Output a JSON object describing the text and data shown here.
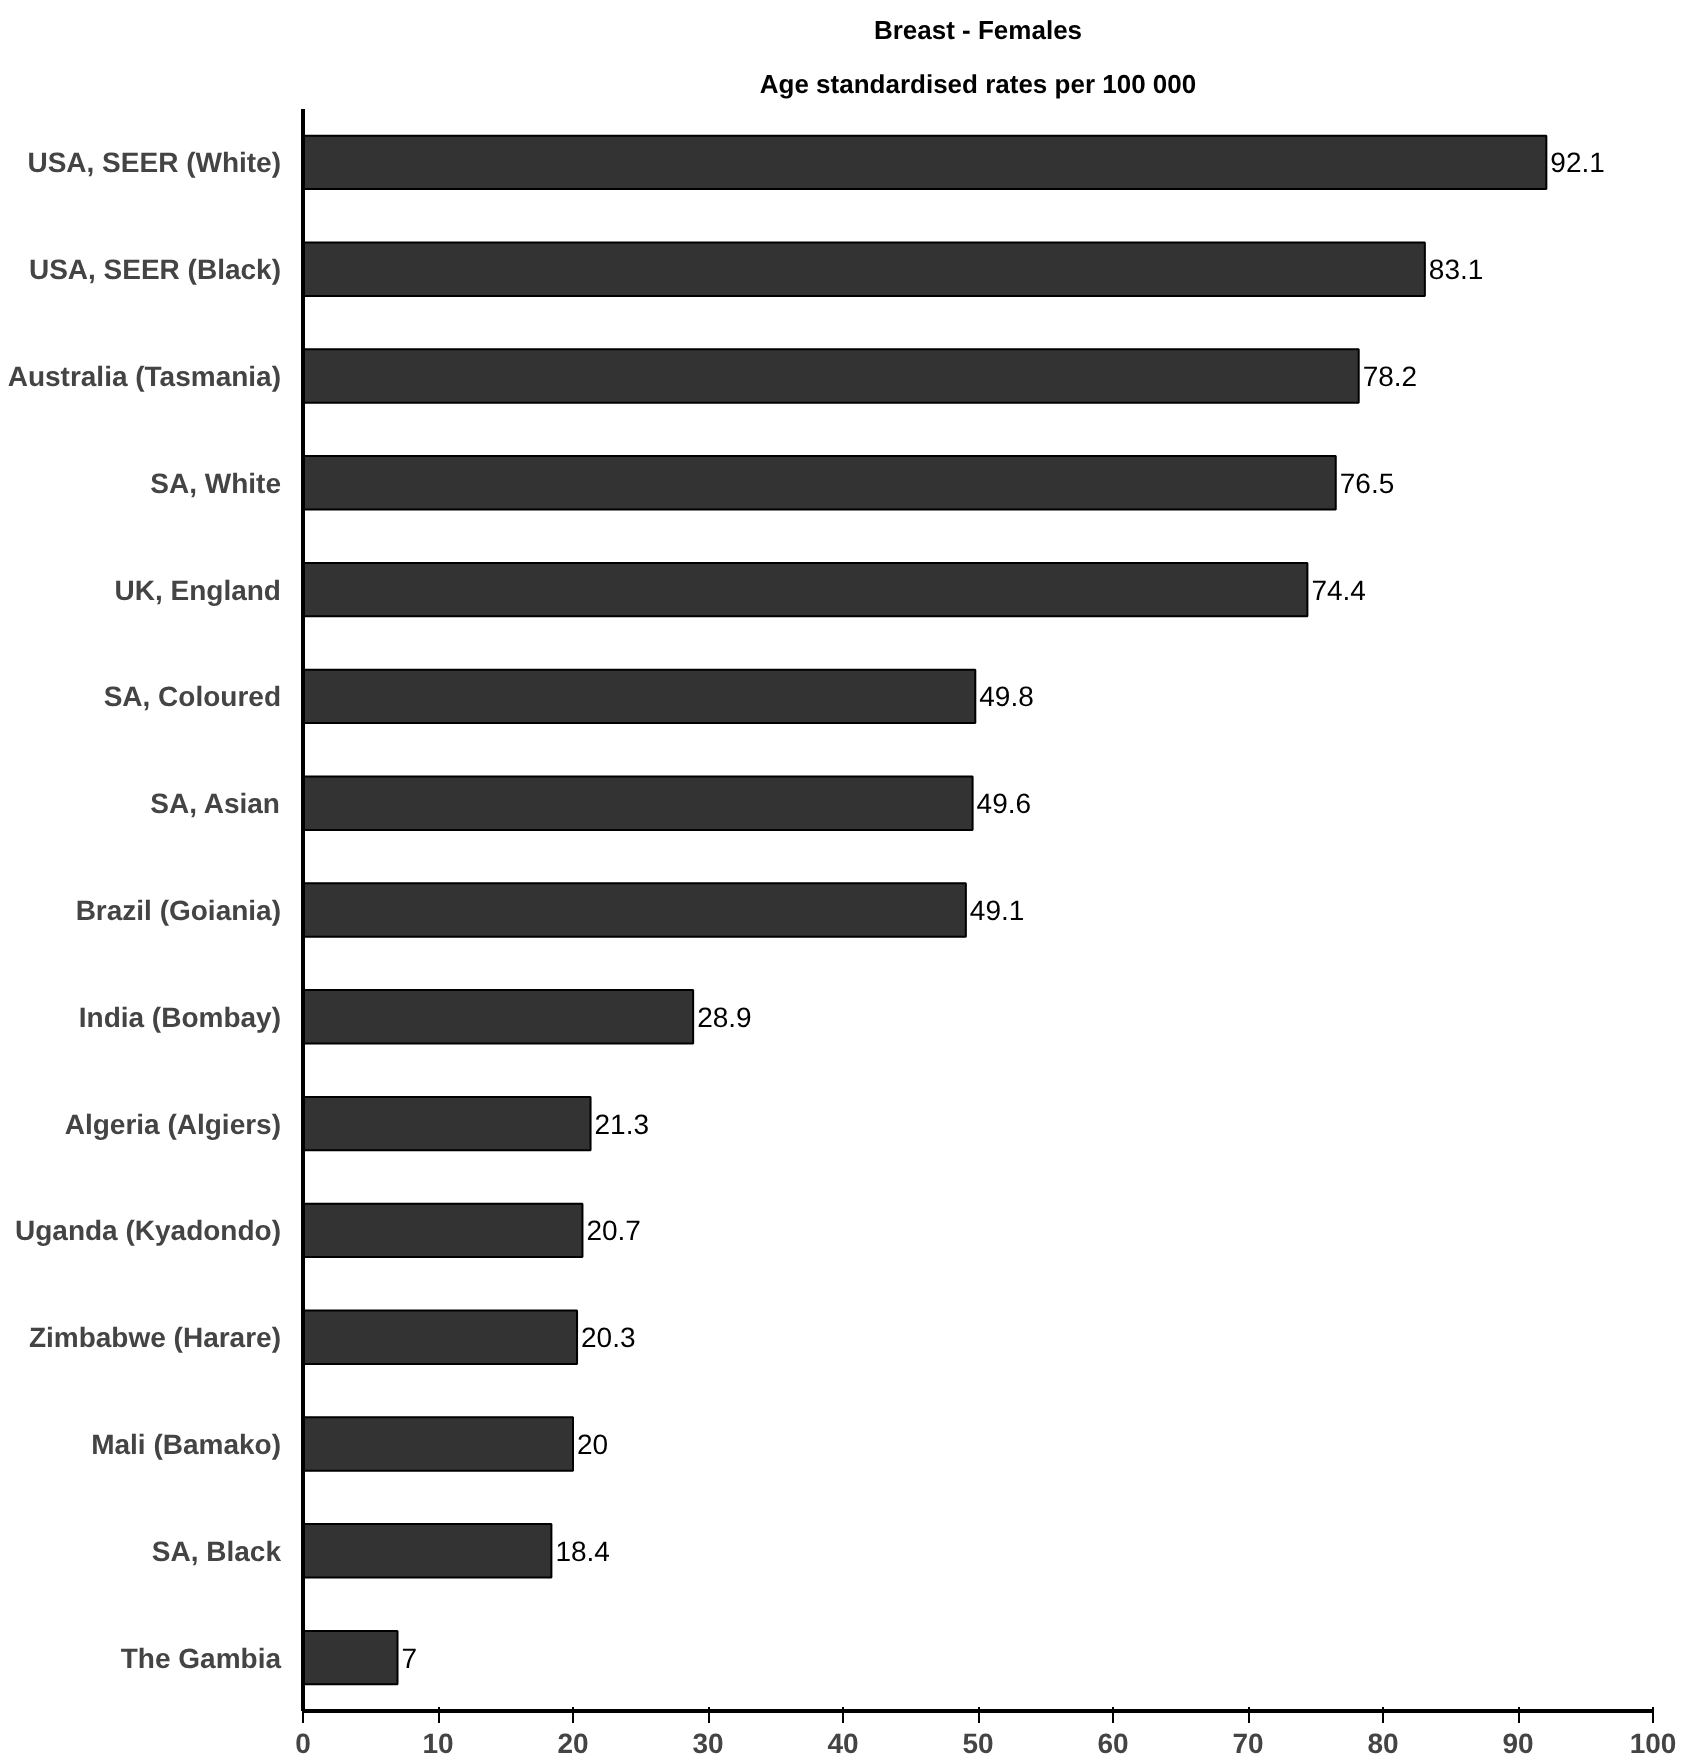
{
  "chart_data": {
    "type": "bar",
    "orientation": "horizontal",
    "title": "Breast - Females",
    "subtitle": "Age standardised rates per 100 000",
    "categories": [
      "USA, SEER (White)",
      "USA, SEER (Black)",
      "Australia (Tasmania)",
      "SA, White",
      "UK, England",
      "SA, Coloured",
      "SA, Asian",
      "Brazil (Goiania)",
      "India (Bombay)",
      "Algeria (Algiers)",
      "Uganda (Kyadondo)",
      "Zimbabwe (Harare)",
      "Mali (Bamako)",
      "SA, Black",
      "The Gambia"
    ],
    "values": [
      92.1,
      83.1,
      78.2,
      76.5,
      74.4,
      49.8,
      49.6,
      49.1,
      28.9,
      21.3,
      20.7,
      20.3,
      20,
      18.4,
      7
    ],
    "color": "#333333",
    "xlim": [
      0,
      100
    ],
    "xticks": [
      0,
      10,
      20,
      30,
      40,
      50,
      60,
      70,
      80,
      90,
      100
    ],
    "data_labels": true,
    "grid": false
  }
}
